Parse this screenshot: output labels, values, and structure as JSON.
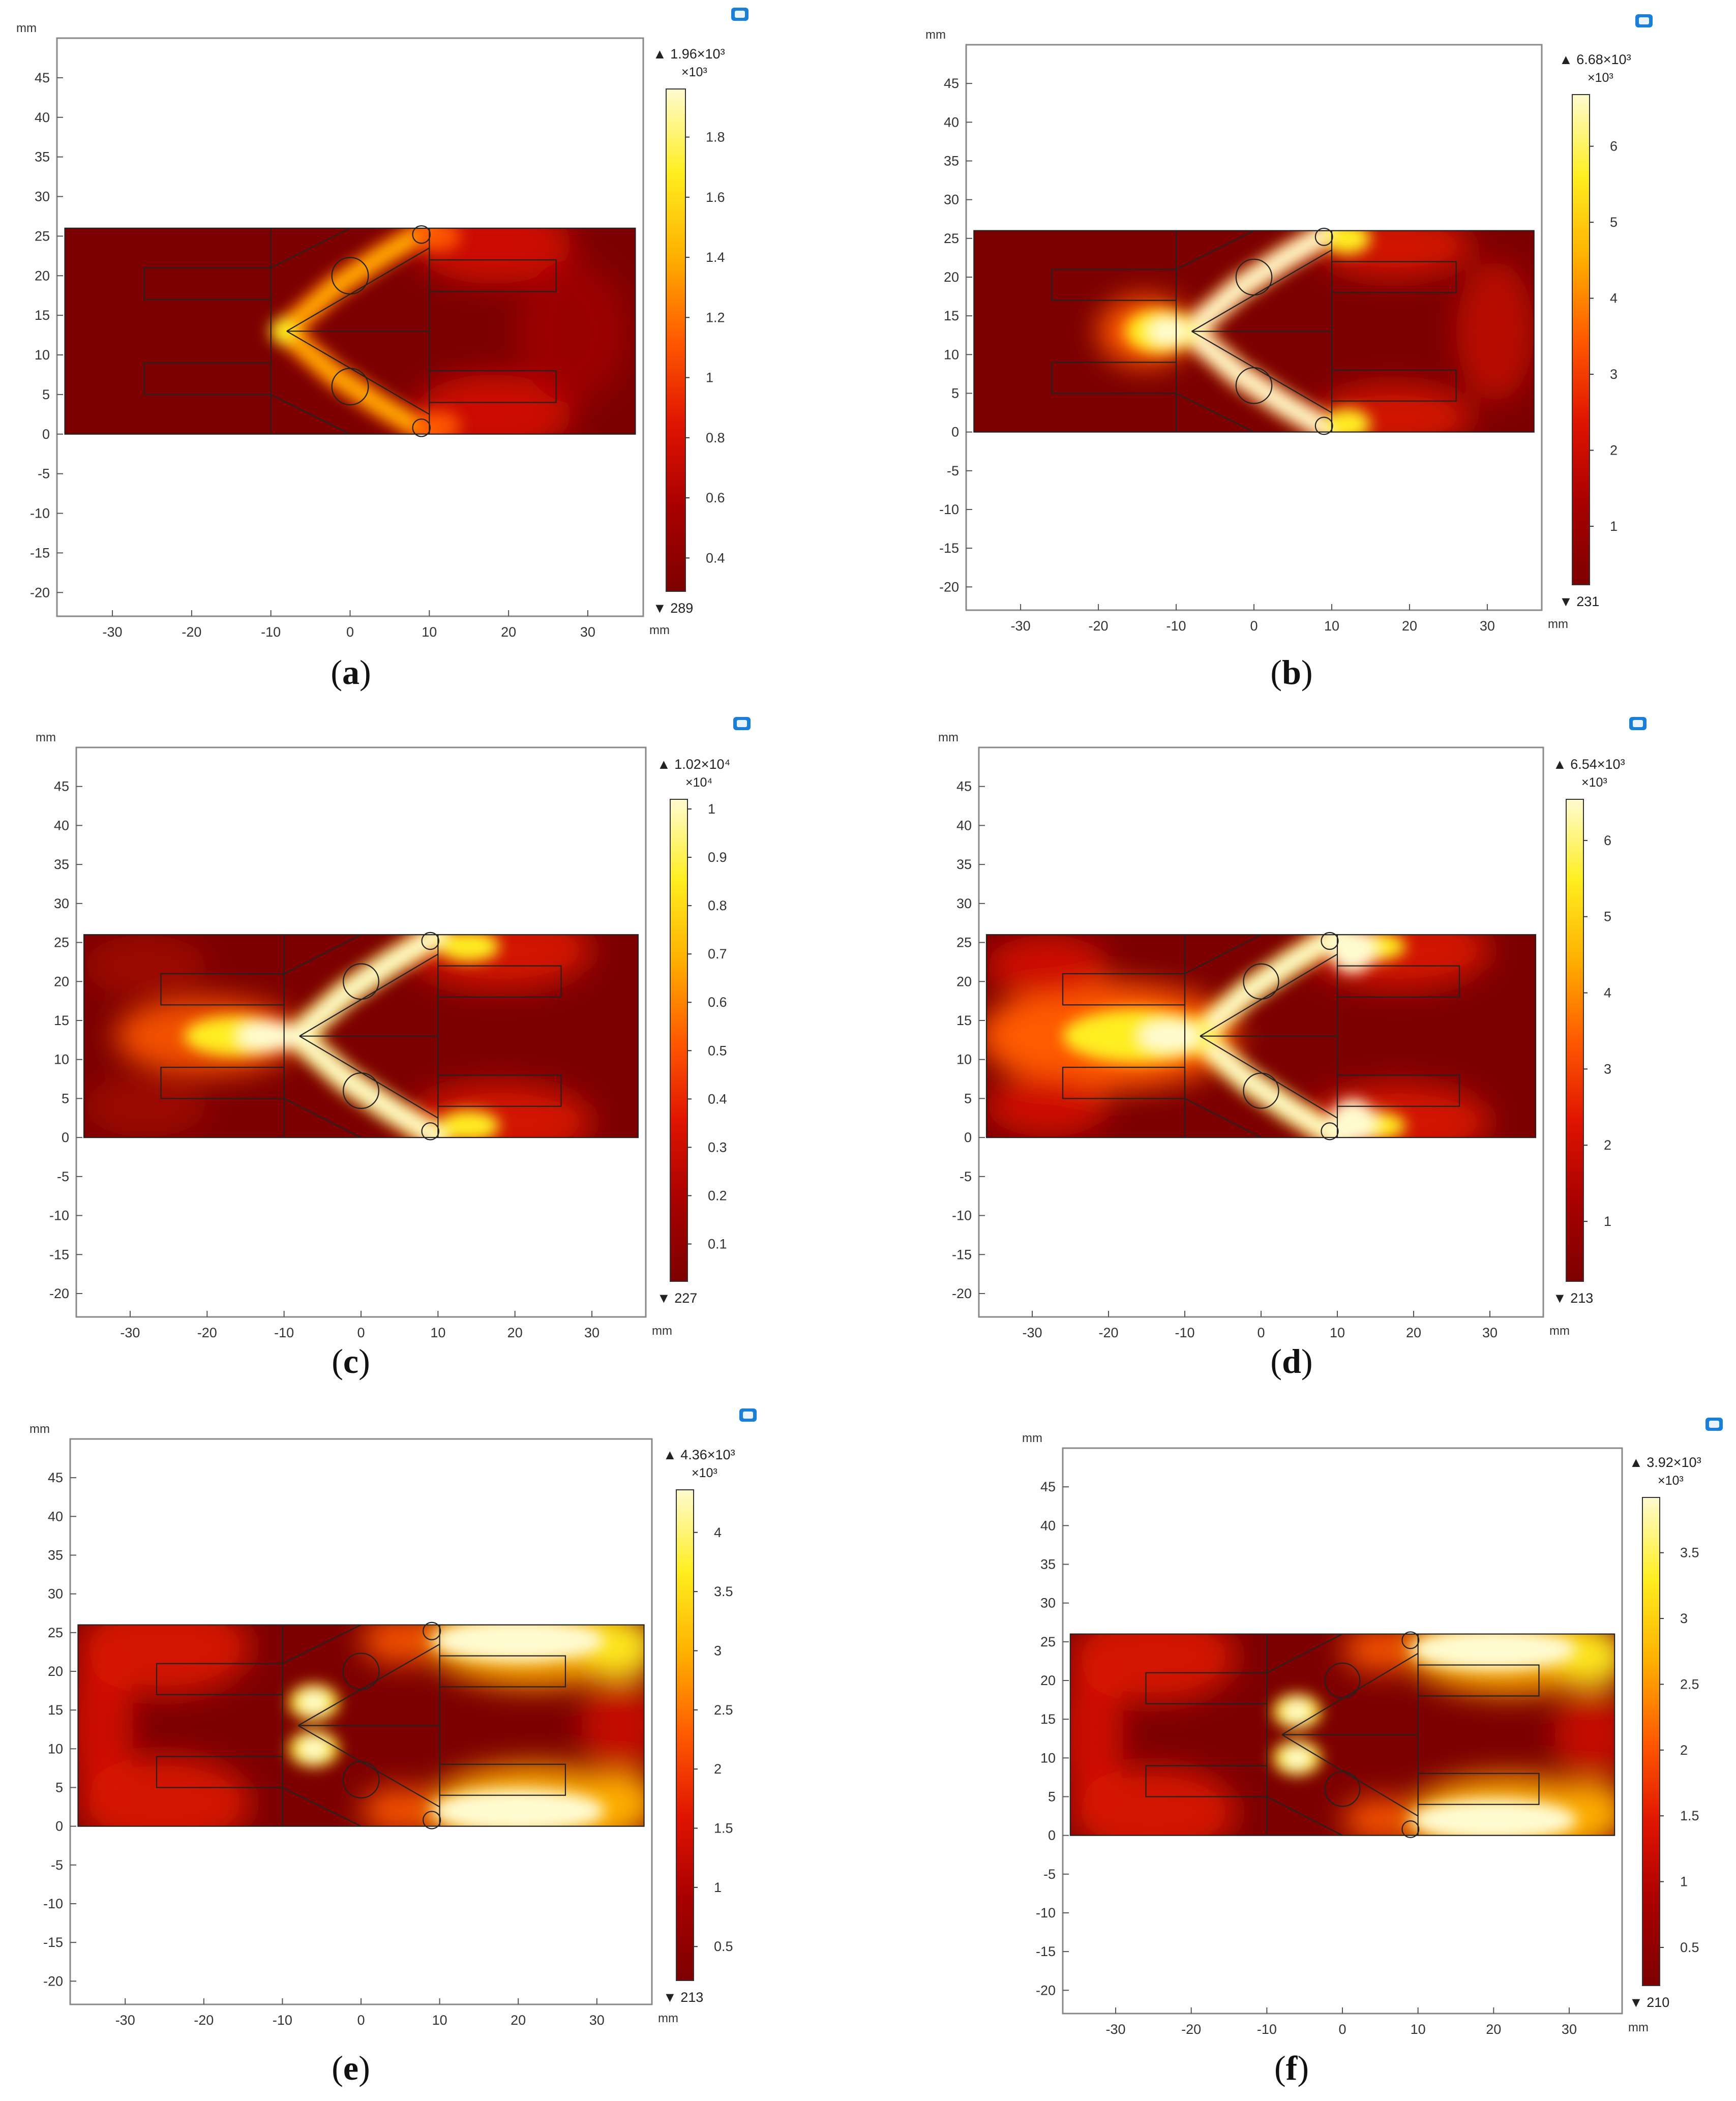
{
  "figure": {
    "axis_unit": "mm",
    "panels": [
      {
        "id": "a",
        "caption_open": "(",
        "caption_letter": "a",
        "caption_close": ")",
        "legend": {
          "max_text": "1.96×10³",
          "multiplier": "×10³",
          "min_text": "289",
          "ticks": [
            0.4,
            0.6,
            0.8,
            1,
            1.2,
            1.4,
            1.6,
            1.8
          ],
          "range": [
            0.289,
            1.96
          ]
        },
        "pattern": "a"
      },
      {
        "id": "b",
        "caption_open": "(",
        "caption_letter": "b",
        "caption_close": ")",
        "legend": {
          "max_text": "6.68×10³",
          "multiplier": "×10³",
          "min_text": "231",
          "ticks": [
            1,
            2,
            3,
            4,
            5,
            6
          ],
          "range": [
            0.231,
            6.68
          ]
        },
        "pattern": "b"
      },
      {
        "id": "c",
        "caption_open": "(",
        "caption_letter": "c",
        "caption_close": ")",
        "legend": {
          "max_text": "1.02×10⁴",
          "multiplier": "×10⁴",
          "min_text": "227",
          "ticks": [
            0.1,
            0.2,
            0.3,
            0.4,
            0.5,
            0.6,
            0.7,
            0.8,
            0.9,
            1
          ],
          "range": [
            0.0227,
            1.02
          ]
        },
        "pattern": "c"
      },
      {
        "id": "d",
        "caption_open": "(",
        "caption_letter": "d",
        "caption_close": ")",
        "legend": {
          "max_text": "6.54×10³",
          "multiplier": "×10³",
          "min_text": "213",
          "ticks": [
            1,
            2,
            3,
            4,
            5,
            6
          ],
          "range": [
            0.213,
            6.54
          ]
        },
        "pattern": "d"
      },
      {
        "id": "e",
        "caption_open": "(",
        "caption_letter": "e",
        "caption_close": ")",
        "legend": {
          "max_text": "4.36×10³",
          "multiplier": "×10³",
          "min_text": "213",
          "ticks": [
            0.5,
            1,
            1.5,
            2,
            2.5,
            3,
            3.5,
            4
          ],
          "range": [
            0.213,
            4.36
          ]
        },
        "pattern": "e"
      },
      {
        "id": "f",
        "caption_open": "(",
        "caption_letter": "f",
        "caption_close": ")",
        "legend": {
          "max_text": "3.92×10³",
          "multiplier": "×10³",
          "min_text": "210",
          "ticks": [
            0.5,
            1,
            1.5,
            2,
            2.5,
            3,
            3.5
          ],
          "range": [
            0.21,
            3.92
          ]
        },
        "pattern": "e"
      }
    ]
  },
  "chart_data": {
    "type": "heatmap",
    "panels": [
      "a",
      "b",
      "c",
      "d",
      "e",
      "f"
    ],
    "xlim": [
      -37,
      37
    ],
    "ylim": [
      -23,
      50
    ],
    "x_ticks": [
      -30,
      -20,
      -10,
      0,
      10,
      20,
      30
    ],
    "y_ticks": [
      -20,
      -15,
      -10,
      -5,
      0,
      5,
      10,
      15,
      20,
      25,
      30,
      35,
      40,
      45
    ],
    "xlabel": "mm",
    "ylabel": "mm",
    "colormap": "heat (dark red → red → yellow → white)",
    "colormap_stops": [
      "#7d0000",
      "#a80000",
      "#e01400",
      "#ff5a00",
      "#ffb000",
      "#ffee20",
      "#fffbd0"
    ],
    "geometry": {
      "domain": [
        [
          -36,
          0
        ],
        [
          36,
          26
        ]
      ],
      "vertical_lines_x": [
        -10,
        10
      ],
      "rectangles": [
        [
          [
            -26,
            17
          ],
          [
            -10,
            21
          ]
        ],
        [
          [
            -26,
            5
          ],
          [
            -10,
            9
          ]
        ],
        [
          [
            10,
            18
          ],
          [
            26,
            22
          ]
        ],
        [
          [
            10,
            4
          ],
          [
            26,
            8
          ]
        ]
      ],
      "circles": [
        [
          0,
          20,
          2.3
        ],
        [
          0,
          6,
          2.3
        ],
        [
          9,
          25.2,
          1.1
        ],
        [
          9,
          0.8,
          1.1
        ]
      ]
    },
    "colorbars": [
      {
        "panel": "a",
        "max": "1.96×10³",
        "min": "289",
        "multiplier": "×10³"
      },
      {
        "panel": "b",
        "max": "6.68×10³",
        "min": "231",
        "multiplier": "×10³"
      },
      {
        "panel": "c",
        "max": "1.02×10⁴",
        "min": "227",
        "multiplier": "×10⁴"
      },
      {
        "panel": "d",
        "max": "6.54×10³",
        "min": "213",
        "multiplier": "×10³"
      },
      {
        "panel": "e",
        "max": "4.36×10³",
        "min": "213",
        "multiplier": "×10³"
      },
      {
        "panel": "f",
        "max": "3.92×10³",
        "min": "210",
        "multiplier": "×10³"
      }
    ]
  }
}
